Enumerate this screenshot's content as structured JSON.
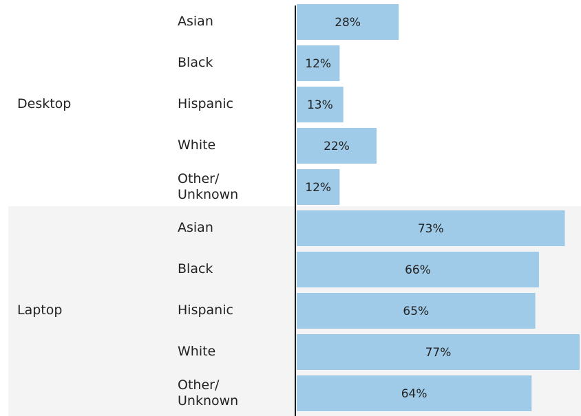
{
  "chart_data": {
    "type": "bar",
    "orientation": "horizontal",
    "title": "",
    "xlabel": "",
    "ylabel": "",
    "xlim": [
      0,
      0.77
    ],
    "grid": false,
    "legend": "none",
    "value_format": "percent",
    "colors": {
      "bar": "#9fcbe8",
      "band": "#f4f4f4",
      "axis": "#1a1a1a"
    },
    "groups": [
      {
        "name": "Desktop",
        "categories": [
          "Asian",
          "Black",
          "Hispanic",
          "White",
          "Other/\nUnknown"
        ],
        "values": [
          0.28,
          0.12,
          0.13,
          0.22,
          0.12
        ],
        "labels": [
          "28%",
          "12%",
          "13%",
          "22%",
          "12%"
        ]
      },
      {
        "name": "Laptop",
        "categories": [
          "Asian",
          "Black",
          "Hispanic",
          "White",
          "Other/\nUnknown"
        ],
        "values": [
          0.73,
          0.66,
          0.65,
          0.77,
          0.64
        ],
        "labels": [
          "73%",
          "66%",
          "65%",
          "77%",
          "64%"
        ]
      }
    ]
  }
}
